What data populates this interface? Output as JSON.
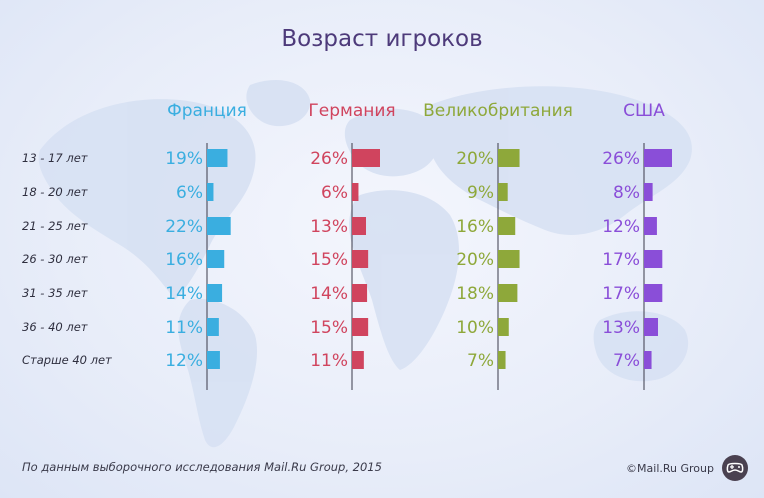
{
  "title": "Возраст игроков",
  "colors": {
    "Франция": "#3aaee0",
    "Германия": "#d0445e",
    "Великобритания": "#8ea83a",
    "США": "#8a4ed8",
    "axis": "#3a3a4a",
    "label": "#2e2e3e"
  },
  "chart_data": {
    "type": "bar",
    "title": "Возраст игроков",
    "categories": [
      "13 - 17 лет",
      "18 - 20 лет",
      "21 - 25 лет",
      "26 - 30 лет",
      "31 - 35 лет",
      "36 - 40 лет",
      "Старше 40 лет"
    ],
    "series": [
      {
        "name": "Франция",
        "values": [
          19,
          6,
          22,
          16,
          14,
          11,
          12
        ]
      },
      {
        "name": "Германия",
        "values": [
          26,
          6,
          13,
          15,
          14,
          15,
          11
        ]
      },
      {
        "name": "Великобритания",
        "values": [
          20,
          9,
          16,
          20,
          18,
          10,
          7
        ]
      },
      {
        "name": "США",
        "values": [
          26,
          8,
          12,
          17,
          17,
          13,
          7
        ]
      }
    ],
    "unit": "%",
    "orientation": "horizontal",
    "xlim": [
      0,
      26
    ]
  },
  "footer": {
    "source": "По данным выборочного исследования Mail.Ru Group, 2015",
    "logo": "©Mail.Ru Group"
  }
}
